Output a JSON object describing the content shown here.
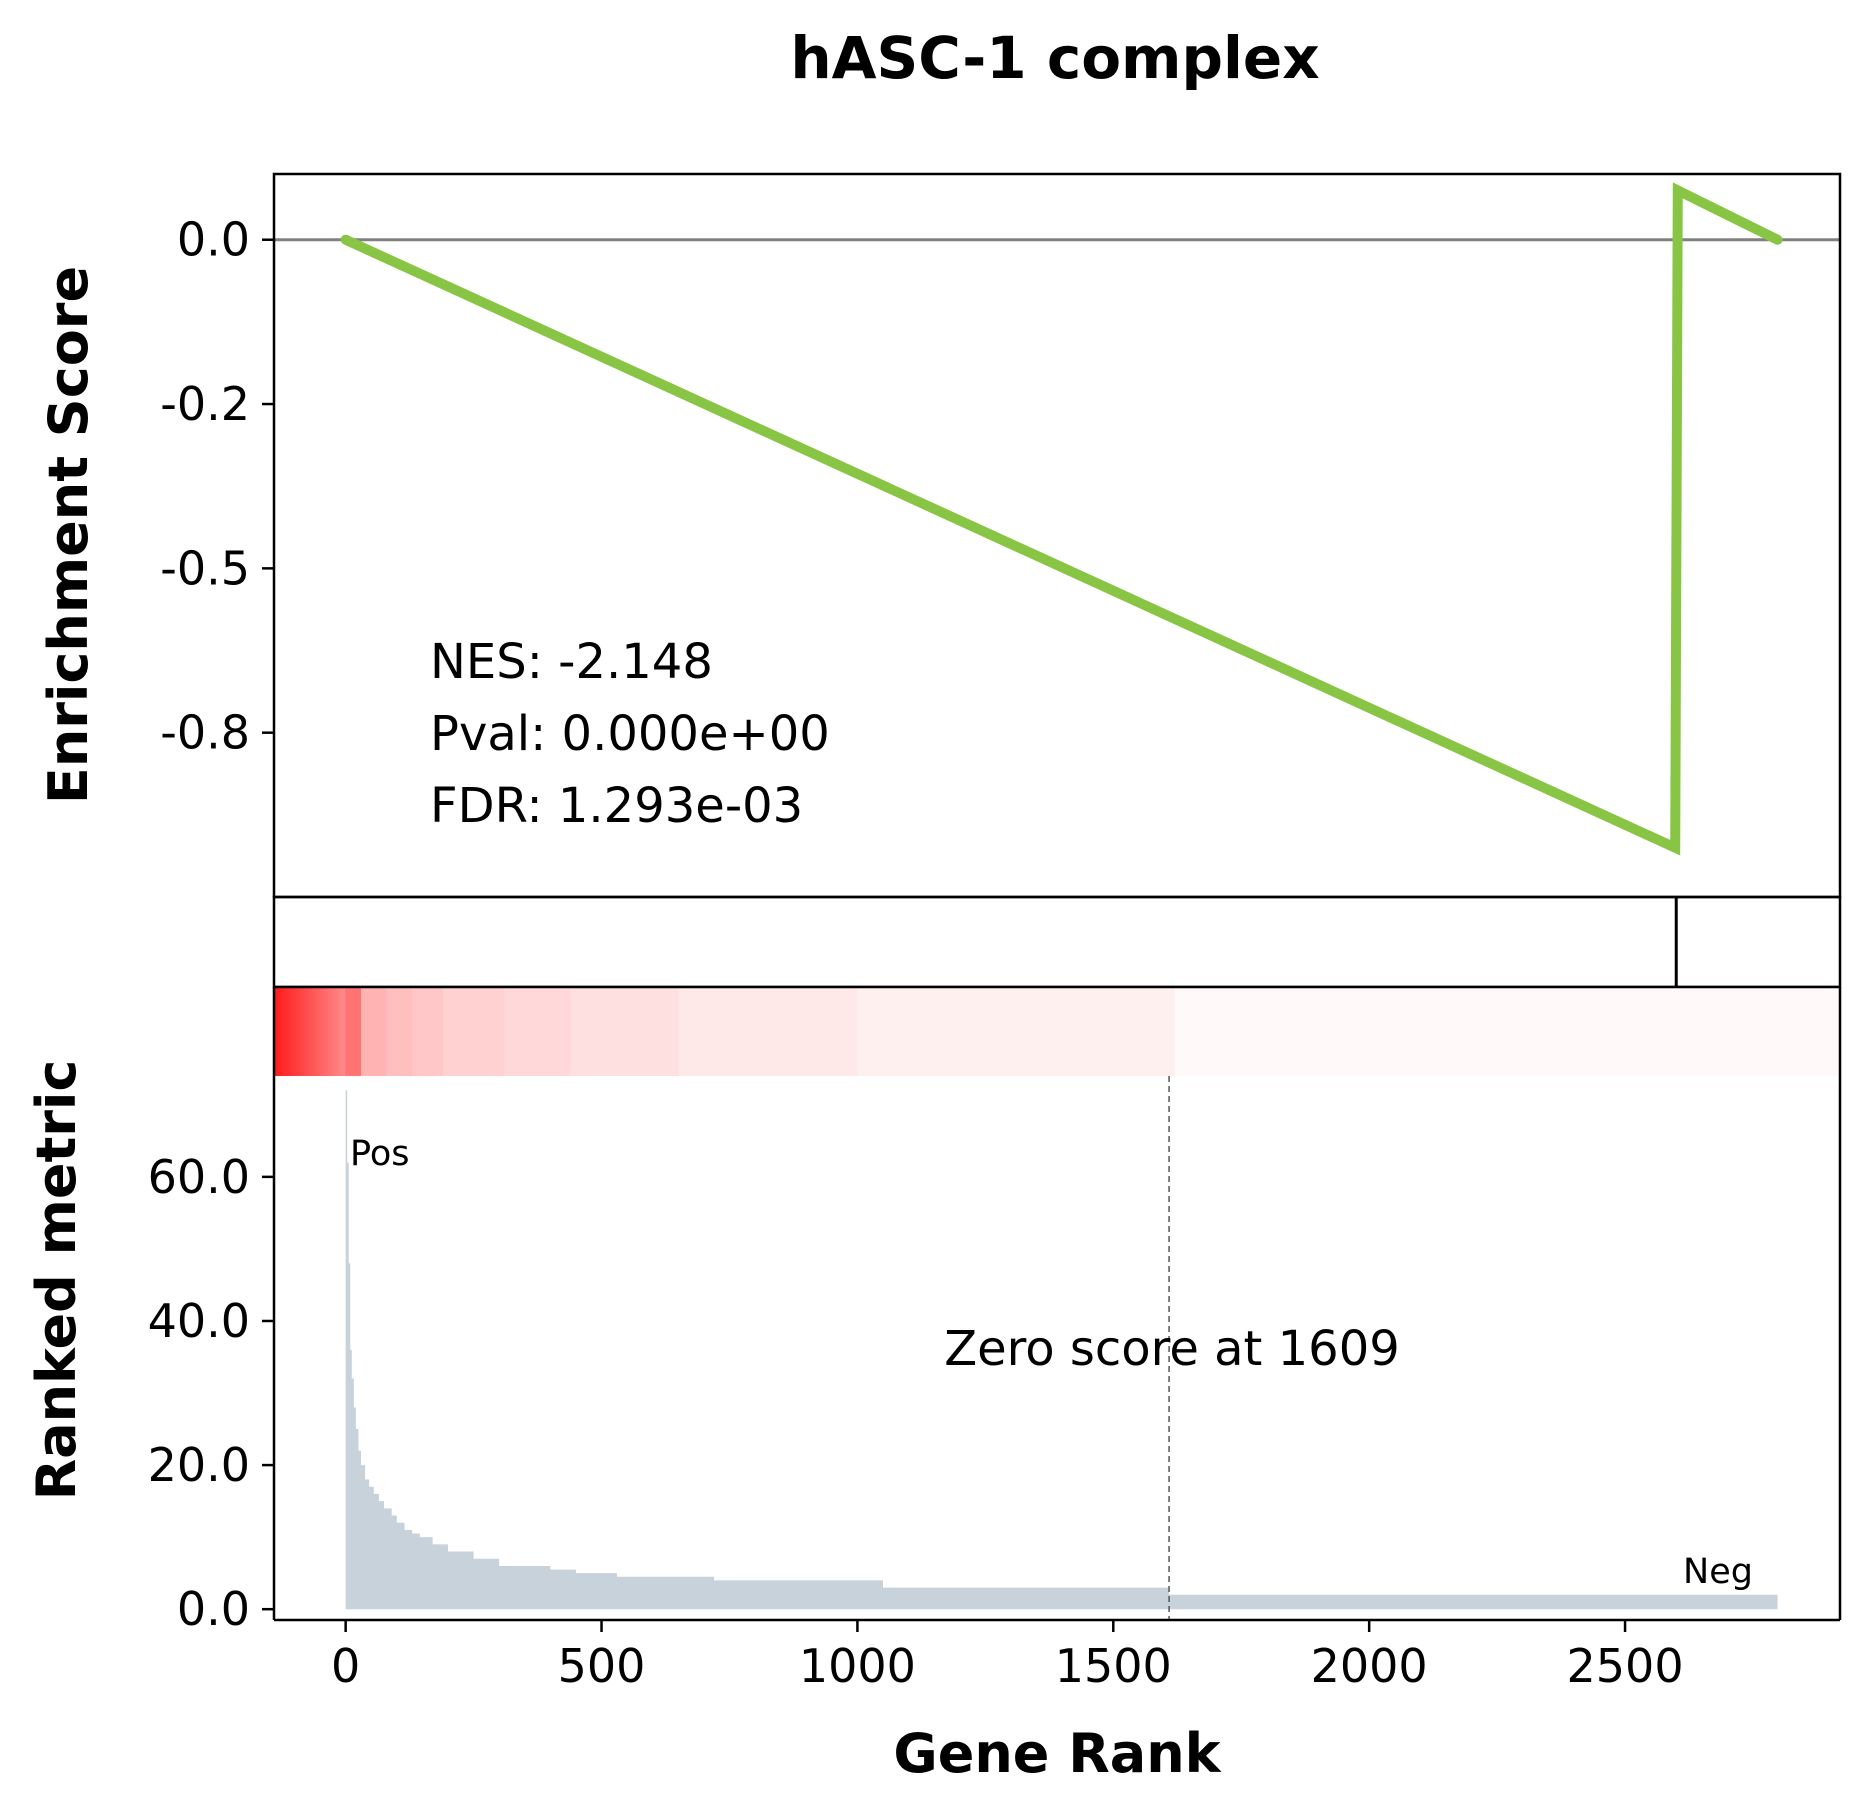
{
  "chart_data": {
    "type": "line",
    "title": "hASC-1 complex",
    "xlabel": "Gene Rank",
    "xlim": [
      -140,
      2920
    ],
    "x_ticks": [
      0,
      500,
      1000,
      1500,
      2000,
      2500
    ],
    "x_tick_labels": [
      "0",
      "500",
      "1000",
      "1500",
      "2000",
      "2500"
    ],
    "enrichment_panel": {
      "ylabel": "Enrichment Score",
      "ylim": [
        -1.0,
        0.1
      ],
      "y_ticks": [
        0.0,
        -0.25,
        -0.5,
        -0.75
      ],
      "y_tick_labels": [
        "0.0",
        "-0.2",
        "-0.5",
        "-0.8"
      ],
      "zero_line": true,
      "series": [
        {
          "color": "#88c544",
          "x": [
            0,
            2598,
            2603,
            2798
          ],
          "y": [
            0.0,
            -0.925,
            0.075,
            0.0
          ]
        }
      ],
      "stats": [
        "NES: -2.148",
        "Pval: 0.000e+00",
        "FDR: 1.293e-03"
      ]
    },
    "hits_panel": {
      "hit_ranks": [
        2600
      ]
    },
    "heatmap_panel": {
      "colormap": "white-to-red",
      "segments": [
        {
          "start": -140,
          "end": 0,
          "intensity": 0.9
        },
        {
          "start": 0,
          "end": 30,
          "intensity": 0.55
        },
        {
          "start": 30,
          "end": 80,
          "intensity": 0.3
        },
        {
          "start": 80,
          "end": 130,
          "intensity": 0.25
        },
        {
          "start": 130,
          "end": 190,
          "intensity": 0.22
        },
        {
          "start": 190,
          "end": 310,
          "intensity": 0.18
        },
        {
          "start": 310,
          "end": 440,
          "intensity": 0.15
        },
        {
          "start": 440,
          "end": 650,
          "intensity": 0.12
        },
        {
          "start": 650,
          "end": 1000,
          "intensity": 0.09
        },
        {
          "start": 1000,
          "end": 1620,
          "intensity": 0.06
        },
        {
          "start": 1620,
          "end": 2920,
          "intensity": 0.025
        }
      ]
    },
    "ranked_panel": {
      "ylabel": "Ranked metric",
      "ylim": [
        -1.5,
        74
      ],
      "y_ticks": [
        0,
        20,
        40,
        60
      ],
      "y_tick_labels": [
        "0.0",
        "20.0",
        "40.0",
        "60.0"
      ],
      "fill_color": "#c8d2db",
      "steps": [
        [
          0,
          72
        ],
        [
          3,
          62
        ],
        [
          6,
          48
        ],
        [
          9,
          36
        ],
        [
          12,
          32
        ],
        [
          16,
          28
        ],
        [
          20,
          25
        ],
        [
          25,
          22
        ],
        [
          30,
          20
        ],
        [
          38,
          18
        ],
        [
          46,
          17
        ],
        [
          55,
          16
        ],
        [
          65,
          15
        ],
        [
          75,
          14
        ],
        [
          90,
          13
        ],
        [
          100,
          12
        ],
        [
          115,
          11
        ],
        [
          130,
          10.5
        ],
        [
          145,
          10
        ],
        [
          170,
          9
        ],
        [
          200,
          8
        ],
        [
          250,
          7
        ],
        [
          300,
          6
        ],
        [
          400,
          5.5
        ],
        [
          450,
          5
        ],
        [
          530,
          4.5
        ],
        [
          720,
          4
        ],
        [
          1050,
          3
        ],
        [
          1609,
          2
        ],
        [
          2798,
          2
        ]
      ],
      "zero_cross_rank": 1609,
      "zero_note": "Zero score at 1609",
      "pos_label": "Pos",
      "neg_label": "Neg",
      "pos_color": "#ff0000",
      "neg_color": "#0000ff"
    }
  }
}
